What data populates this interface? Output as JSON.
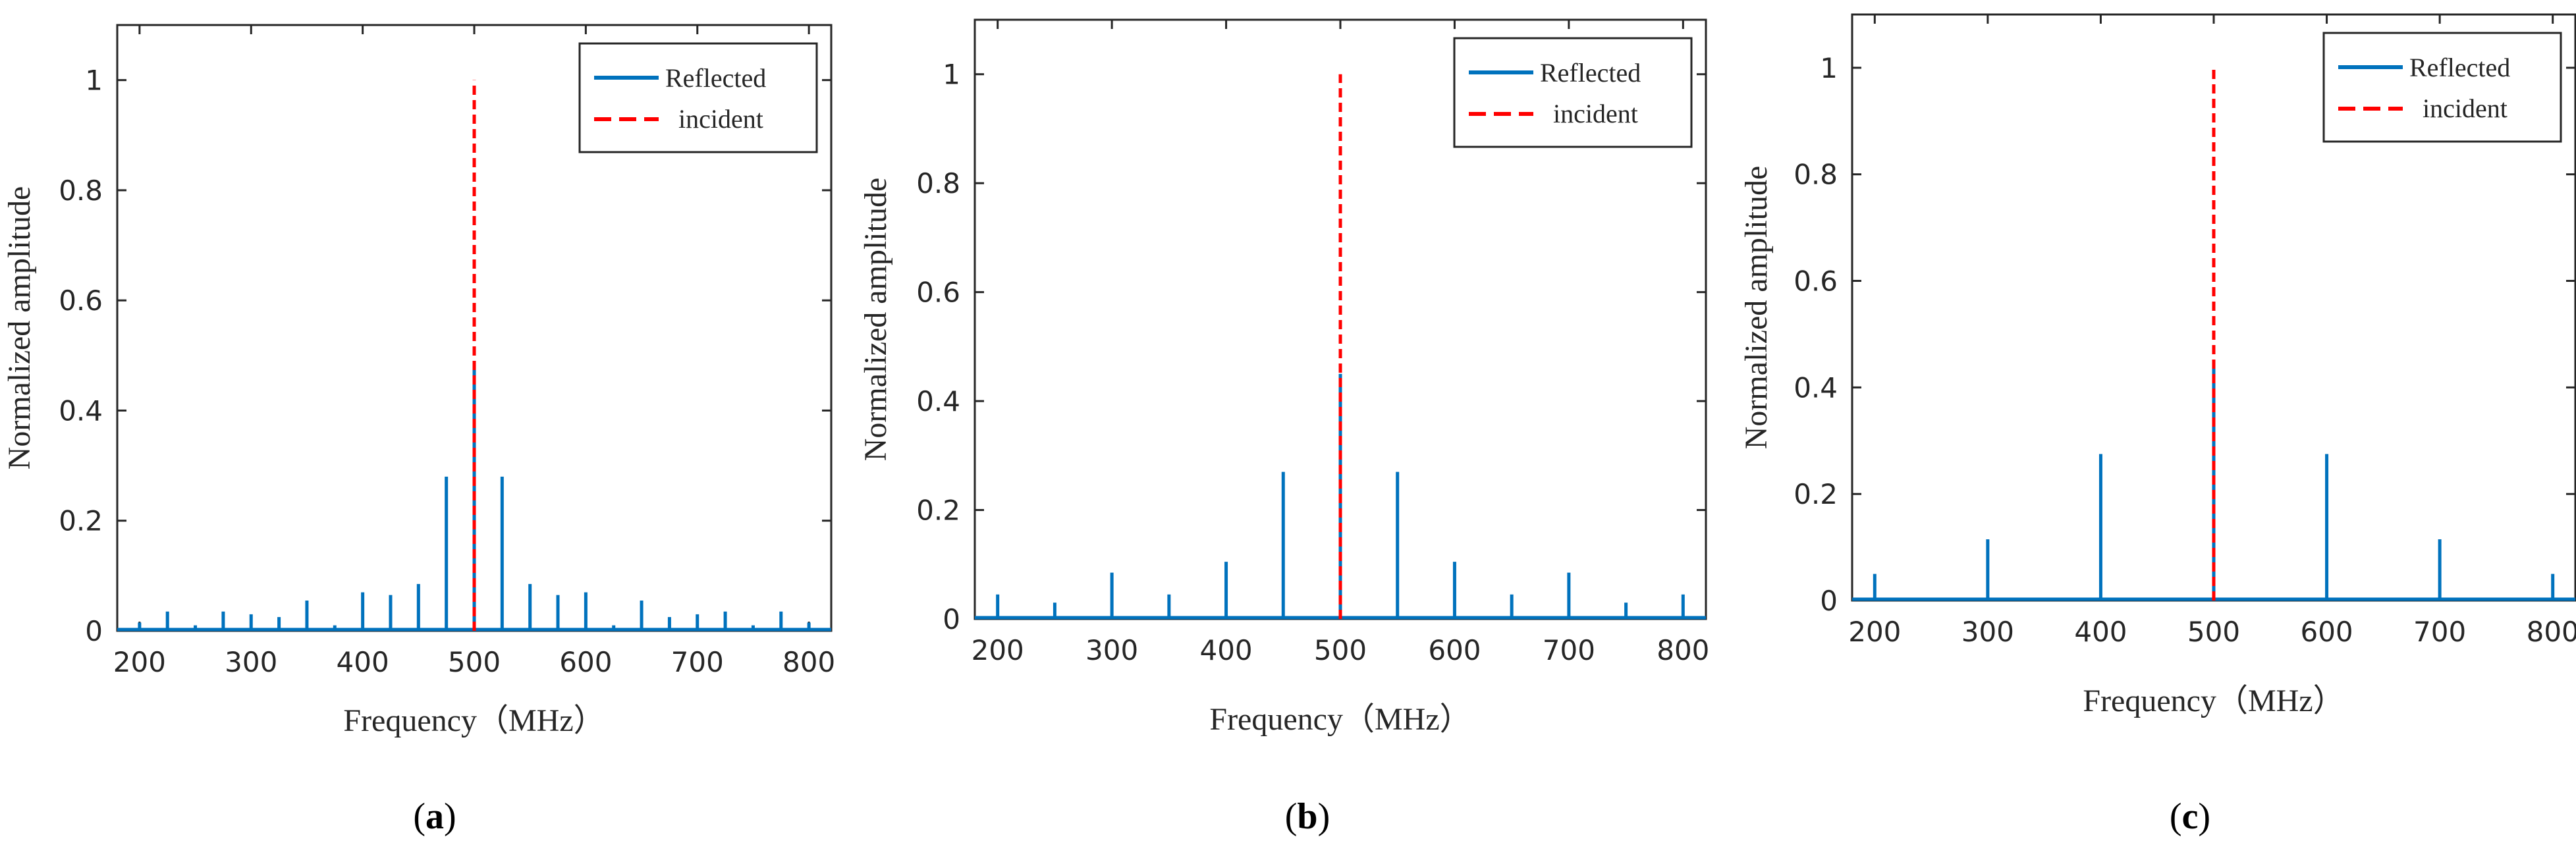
{
  "figure": {
    "colors": {
      "reflected": "#0072BD",
      "incident": "#FF0000",
      "axes": "#262626"
    }
  },
  "chart_data": [
    {
      "type": "bar",
      "panel": "a",
      "caption_open": "(",
      "caption_letter": "a",
      "caption_close": ")",
      "xlabel": "Frequency（MHz）",
      "ylabel": "Normalized amplitude",
      "xlim": [
        180,
        820
      ],
      "ylim": [
        0,
        1.1
      ],
      "xticks": [
        200,
        300,
        400,
        500,
        600,
        700,
        800
      ],
      "xtick_labels": [
        "200",
        "300",
        "400",
        "500",
        "600",
        "700",
        "800"
      ],
      "yticks": [
        0,
        0.2,
        0.4,
        0.6,
        0.8,
        1
      ],
      "ytick_labels": [
        "0",
        "0.2",
        "0.4",
        "0.6",
        "0.8",
        "1"
      ],
      "grid": false,
      "legend": {
        "position": "top-right",
        "entries": [
          "Reflected",
          "incident"
        ]
      },
      "series": [
        {
          "name": "Reflected",
          "x": [
            200,
            225,
            250,
            275,
            300,
            325,
            350,
            375,
            400,
            425,
            450,
            475,
            500,
            525,
            550,
            575,
            600,
            625,
            650,
            675,
            700,
            725,
            750,
            775,
            800
          ],
          "values": [
            0.015,
            0.035,
            0.01,
            0.035,
            0.03,
            0.025,
            0.055,
            0.01,
            0.07,
            0.065,
            0.085,
            0.28,
            0.48,
            0.28,
            0.085,
            0.065,
            0.07,
            0.01,
            0.055,
            0.025,
            0.03,
            0.035,
            0.01,
            0.035,
            0.015
          ]
        },
        {
          "name": "incident",
          "x": [
            500
          ],
          "values": [
            1.0
          ]
        }
      ]
    },
    {
      "type": "bar",
      "panel": "b",
      "caption_open": "(",
      "caption_letter": "b",
      "caption_close": ")",
      "xlabel": "Frequency（MHz）",
      "ylabel": "Normalized amplitude",
      "xlim": [
        180,
        820
      ],
      "ylim": [
        0,
        1.1
      ],
      "xticks": [
        200,
        300,
        400,
        500,
        600,
        700,
        800
      ],
      "xtick_labels": [
        "200",
        "300",
        "400",
        "500",
        "600",
        "700",
        "800"
      ],
      "yticks": [
        0,
        0.2,
        0.4,
        0.6,
        0.8,
        1
      ],
      "ytick_labels": [
        "0",
        "0.2",
        "0.4",
        "0.6",
        "0.8",
        "1"
      ],
      "grid": false,
      "legend": {
        "position": "top-right",
        "entries": [
          "Reflected",
          "incident"
        ]
      },
      "series": [
        {
          "name": "Reflected",
          "x": [
            200,
            250,
            300,
            350,
            400,
            450,
            500,
            550,
            600,
            650,
            700,
            750,
            800
          ],
          "values": [
            0.045,
            0.03,
            0.085,
            0.045,
            0.105,
            0.27,
            0.45,
            0.27,
            0.105,
            0.045,
            0.085,
            0.03,
            0.045
          ]
        },
        {
          "name": "incident",
          "x": [
            500
          ],
          "values": [
            1.0
          ]
        }
      ]
    },
    {
      "type": "bar",
      "panel": "c",
      "caption_open": "(",
      "caption_letter": "c",
      "caption_close": ")",
      "xlabel": "Frequency（MHz）",
      "ylabel": "Normalized amplitude",
      "xlim": [
        180,
        820
      ],
      "ylim": [
        0,
        1.1
      ],
      "xticks": [
        200,
        300,
        400,
        500,
        600,
        700,
        800
      ],
      "xtick_labels": [
        "200",
        "300",
        "400",
        "500",
        "600",
        "700",
        "800"
      ],
      "yticks": [
        0,
        0.2,
        0.4,
        0.6,
        0.8,
        1
      ],
      "ytick_labels": [
        "0",
        "0.2",
        "0.4",
        "0.6",
        "0.8",
        "1"
      ],
      "grid": false,
      "legend": {
        "position": "top-right",
        "entries": [
          "Reflected",
          "incident"
        ]
      },
      "series": [
        {
          "name": "Reflected",
          "x": [
            200,
            300,
            400,
            500,
            600,
            700,
            800
          ],
          "values": [
            0.05,
            0.115,
            0.275,
            0.45,
            0.275,
            0.115,
            0.05
          ]
        },
        {
          "name": "incident",
          "x": [
            500
          ],
          "values": [
            1.0
          ]
        }
      ]
    }
  ]
}
